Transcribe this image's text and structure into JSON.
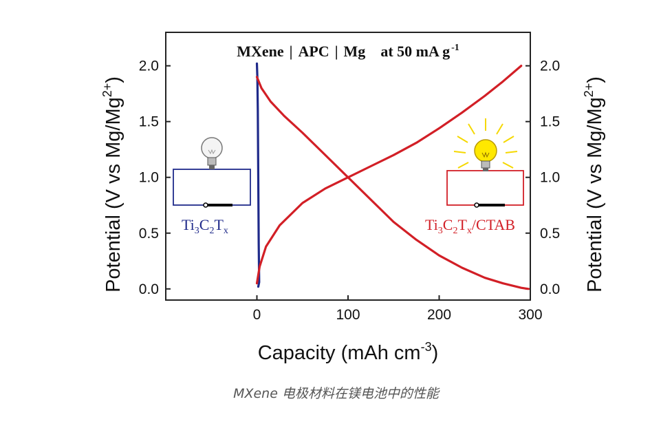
{
  "chart_data": {
    "type": "line",
    "title_parts": [
      "MXene",
      "APC",
      "Mg",
      "at 50 mA g",
      "-1"
    ],
    "xlabel": "Capacity (mAh cm",
    "xlabel_sup": "-3",
    "xlabel_close": ")",
    "ylabel": "Potential (V vs Mg/Mg",
    "ylabel_sup": "2+",
    "ylabel_close": ")",
    "ylabel_right": "Potential (V vs Mg/Mg",
    "ylabel_right_sup": "2+",
    "ylabel_right_close": ")",
    "xlim": [
      -100,
      300
    ],
    "ylim": [
      -0.1,
      2.3
    ],
    "xticks": [
      0,
      100,
      200,
      300
    ],
    "yticks": [
      0.0,
      0.5,
      1.0,
      1.5,
      2.0
    ],
    "ytick_labels": [
      "0.0",
      "0.5",
      "1.0",
      "1.5",
      "2.0"
    ],
    "series": [
      {
        "color": "#1f2a8a",
        "points": [
          [
            0,
            2.02
          ],
          [
            0.5,
            1.9
          ],
          [
            1.0,
            1.6
          ],
          [
            1.5,
            1.0
          ],
          [
            2.0,
            0.4
          ],
          [
            2.5,
            0.06
          ],
          [
            1.5,
            0.02
          ]
        ]
      },
      {
        "color": "#d21f26",
        "points": [
          [
            0,
            1.9
          ],
          [
            5,
            1.8
          ],
          [
            15,
            1.68
          ],
          [
            30,
            1.55
          ],
          [
            50,
            1.4
          ],
          [
            75,
            1.2
          ],
          [
            100,
            1.0
          ],
          [
            125,
            0.8
          ],
          [
            150,
            0.6
          ],
          [
            175,
            0.44
          ],
          [
            200,
            0.3
          ],
          [
            225,
            0.19
          ],
          [
            250,
            0.1
          ],
          [
            270,
            0.05
          ],
          [
            290,
            0.01
          ],
          [
            298,
            0.0
          ]
        ]
      },
      {
        "color": "#d21f26",
        "points": [
          [
            0,
            0.05
          ],
          [
            3,
            0.2
          ],
          [
            10,
            0.38
          ],
          [
            25,
            0.57
          ],
          [
            50,
            0.77
          ],
          [
            75,
            0.9
          ],
          [
            100,
            1.0
          ],
          [
            125,
            1.1
          ],
          [
            150,
            1.2
          ],
          [
            175,
            1.31
          ],
          [
            200,
            1.44
          ],
          [
            225,
            1.58
          ],
          [
            250,
            1.73
          ],
          [
            270,
            1.86
          ],
          [
            290,
            2.0
          ]
        ]
      }
    ],
    "annotations": {
      "left_label": {
        "base": "Ti",
        "s1": "3",
        "mid": "C",
        "s2": "2",
        "end": "T",
        "s3": "x",
        "color": "#1f2a8a"
      },
      "right_label": {
        "base": "Ti",
        "s1": "3",
        "mid": "C",
        "s2": "2",
        "end": "T",
        "s3": "x",
        "suffix": "/CTAB",
        "color": "#d21f26"
      }
    }
  },
  "caption": "MXene 电极材料在镁电池中的性能"
}
